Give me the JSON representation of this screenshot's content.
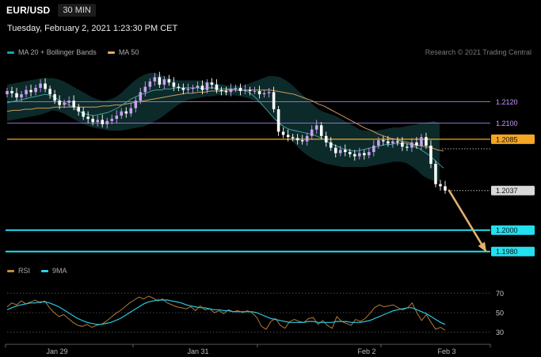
{
  "header": {
    "pair": "EUR/USD",
    "timeframe": "30 MIN",
    "datetime": "Tuesday, February 2, 2021 1:23:30 PM CET"
  },
  "legend_main": [
    {
      "label": "MA 20 + Bollinger Bands",
      "color": "#1aa2b0"
    },
    {
      "label": "MA 50",
      "color": "#e0a96a"
    }
  ],
  "legend_rsi": [
    {
      "label": "RSI",
      "color": "#c98a3a"
    },
    {
      "label": "9MA",
      "color": "#29d0e8"
    }
  ],
  "research": "Research © 2021 Trading Central",
  "colors": {
    "up": "#c8a2f0",
    "down": "#ffffff",
    "band": "#0e2c2c",
    "cyan": "#22e0f0",
    "orange": "#f5a623",
    "purple": "#9f7fe0",
    "arrow": "#e0b070"
  },
  "chart_data": [
    {
      "type": "candlestick",
      "x_labels": [
        "Jan 29",
        "Jan 31",
        "Feb 2",
        "Feb 3"
      ],
      "ylim": [
        1.1965,
        1.215
      ],
      "close": [
        1.213,
        1.2128,
        1.2124,
        1.2127,
        1.2131,
        1.2129,
        1.2133,
        1.2137,
        1.2132,
        1.2127,
        1.2121,
        1.2117,
        1.2119,
        1.2121,
        1.2115,
        1.2111,
        1.2106,
        1.2104,
        1.2101,
        1.2103,
        1.2099,
        1.2102,
        1.2104,
        1.2107,
        1.2111,
        1.2109,
        1.2114,
        1.2121,
        1.2129,
        1.2134,
        1.2139,
        1.2143,
        1.2136,
        1.2141,
        1.2138,
        1.2134,
        1.2133,
        1.2131,
        1.2132,
        1.2133,
        1.2135,
        1.2131,
        1.2138,
        1.2136,
        1.2131,
        1.213,
        1.2129,
        1.2132,
        1.2133,
        1.213,
        1.2131,
        1.213,
        1.213,
        1.2127,
        1.2128,
        1.2129,
        1.2113,
        1.2092,
        1.2089,
        1.2087,
        1.2086,
        1.2084,
        1.2083,
        1.2088,
        1.2094,
        1.2098,
        1.2088,
        1.2082,
        1.2077,
        1.2072,
        1.2075,
        1.2073,
        1.2071,
        1.2069,
        1.2072,
        1.207,
        1.2073,
        1.2079,
        1.2084,
        1.2083,
        1.2081,
        1.2083,
        1.2082,
        1.2078,
        1.2077,
        1.2082,
        1.2079,
        1.2087,
        1.2079,
        1.2062,
        1.2043,
        1.2041,
        1.2037
      ],
      "ma20": [
        1.2119,
        1.212,
        1.2121,
        1.2122,
        1.2123,
        1.2124,
        1.2125,
        1.2126,
        1.2127,
        1.2126,
        1.2124,
        1.2121,
        1.2119,
        1.2117,
        1.2114,
        1.2111,
        1.2109,
        1.2108,
        1.2107,
        1.2108,
        1.2109,
        1.211,
        1.2112,
        1.2114,
        1.2117,
        1.212,
        1.2123,
        1.2125,
        1.2127,
        1.2128,
        1.213,
        1.2131,
        1.2131,
        1.2132,
        1.2132,
        1.2133,
        1.2133,
        1.2133,
        1.2133,
        1.2133,
        1.2133,
        1.2132,
        1.2133,
        1.2133,
        1.2132,
        1.2132,
        1.2132,
        1.2132,
        1.2131,
        1.2131,
        1.213,
        1.2127,
        1.2123,
        1.2118,
        1.2113,
        1.2108,
        1.2103,
        1.2099,
        1.2096,
        1.2094,
        1.2093,
        1.2092,
        1.2091,
        1.209,
        1.2089,
        1.2087,
        1.2085,
        1.2082,
        1.208,
        1.2078,
        1.2076,
        1.2075,
        1.2074,
        1.2074,
        1.2075,
        1.2076,
        1.2077,
        1.2078,
        1.2079,
        1.208,
        1.208,
        1.2081,
        1.2081,
        1.2081,
        1.208,
        1.2078,
        1.2076,
        1.2073,
        1.207,
        1.2066,
        1.2062,
        1.2058
      ],
      "ma50": [
        1.2111,
        1.2112,
        1.2112,
        1.2113,
        1.2113,
        1.2114,
        1.2114,
        1.2114,
        1.2115,
        1.2115,
        1.2115,
        1.2115,
        1.2115,
        1.2115,
        1.2115,
        1.2115,
        1.2116,
        1.2116,
        1.2117,
        1.2117,
        1.2118,
        1.2119,
        1.212,
        1.2121,
        1.2122,
        1.2123,
        1.2124,
        1.2125,
        1.2126,
        1.2127,
        1.2128,
        1.2128,
        1.2129,
        1.2129,
        1.213,
        1.213,
        1.213,
        1.2131,
        1.2131,
        1.2131,
        1.2131,
        1.2131,
        1.2131,
        1.2131,
        1.2131,
        1.213,
        1.2129,
        1.2128,
        1.2127,
        1.2125,
        1.2123,
        1.2121,
        1.2118,
        1.2116,
        1.2113,
        1.211,
        1.2107,
        1.2104,
        1.2101,
        1.2098,
        1.2095,
        1.2093,
        1.209,
        1.2088,
        1.2086,
        1.2085,
        1.2083,
        1.2082,
        1.208,
        1.2079,
        1.2078,
        1.2077,
        1.2075,
        1.2074
      ],
      "bb_upper": [
        1.2136,
        1.2137,
        1.2138,
        1.2139,
        1.214,
        1.2141,
        1.2142,
        1.2142,
        1.2142,
        1.2141,
        1.2139,
        1.2136,
        1.2133,
        1.213,
        1.2127,
        1.2124,
        1.2122,
        1.2121,
        1.2122,
        1.2124,
        1.2128,
        1.2133,
        1.2138,
        1.2142,
        1.2145,
        1.2147,
        1.2147,
        1.2145,
        1.2143,
        1.2141,
        1.214,
        1.214,
        1.214,
        1.214,
        1.214,
        1.2139,
        1.2138,
        1.2137,
        1.2136,
        1.2135,
        1.2135,
        1.2135,
        1.2136,
        1.2138,
        1.214,
        1.2142,
        1.2144,
        1.2144,
        1.2143,
        1.214,
        1.2136,
        1.2131,
        1.2126,
        1.2121,
        1.2116,
        1.2112,
        1.211,
        1.2108,
        1.2106,
        1.2103,
        1.21,
        1.2097,
        1.2094,
        1.2093,
        1.2093,
        1.2093,
        1.2094,
        1.2095,
        1.2096,
        1.2096,
        1.2097,
        1.2098,
        1.2099,
        1.21,
        1.2101,
        1.2102,
        1.21
      ],
      "bb_lower": [
        1.2102,
        1.2103,
        1.2104,
        1.2105,
        1.2106,
        1.2107,
        1.2108,
        1.211,
        1.2112,
        1.2111,
        1.2109,
        1.2106,
        1.2103,
        1.21,
        1.2098,
        1.2096,
        1.2095,
        1.2094,
        1.2093,
        1.2093,
        1.2093,
        1.2094,
        1.2095,
        1.2096,
        1.2097,
        1.2099,
        1.2102,
        1.2105,
        1.2109,
        1.2113,
        1.2117,
        1.212,
        1.2122,
        1.2123,
        1.2124,
        1.2125,
        1.2125,
        1.2126,
        1.2126,
        1.2126,
        1.2126,
        1.2125,
        1.2124,
        1.2122,
        1.212,
        1.2116,
        1.2111,
        1.2105,
        1.2098,
        1.2091,
        1.2084,
        1.2078,
        1.2073,
        1.2069,
        1.2066,
        1.2064,
        1.2062,
        1.2061,
        1.206,
        1.2059,
        1.2059,
        1.2059,
        1.2059,
        1.2059,
        1.206,
        1.2061,
        1.2062,
        1.2063,
        1.2064,
        1.2064,
        1.2063,
        1.206,
        1.2056,
        1.2051,
        1.2048,
        1.2046,
        1.2046
      ],
      "levels": [
        {
          "value": 1.212,
          "label": "1.2120",
          "style": "purple"
        },
        {
          "value": 1.21,
          "label": "1.2100",
          "style": "purple"
        },
        {
          "value": 1.2085,
          "label": "1.2085",
          "style": "orange"
        },
        {
          "value": 1.2037,
          "label": "1.2037",
          "style": "current"
        },
        {
          "value": 1.2,
          "label": "1.2000",
          "style": "cyan"
        },
        {
          "value": 1.198,
          "label": "1.1980",
          "style": "cyan"
        }
      ],
      "arrow": {
        "from": 1.2037,
        "to": 1.198
      }
    },
    {
      "type": "line",
      "name": "RSI",
      "ylim": [
        20,
        80
      ],
      "y_ticks": [
        70,
        50,
        30
      ],
      "rsi": [
        56,
        60,
        58,
        62,
        59,
        61,
        63,
        60,
        62,
        55,
        50,
        46,
        48,
        44,
        40,
        37,
        36,
        38,
        35,
        37,
        38,
        41,
        45,
        49,
        52,
        56,
        60,
        63,
        66,
        64,
        67,
        65,
        62,
        64,
        60,
        58,
        56,
        55,
        54,
        56,
        52,
        57,
        53,
        54,
        50,
        52,
        49,
        53,
        51,
        52,
        50,
        52,
        50,
        45,
        36,
        33,
        41,
        44,
        37,
        34,
        41,
        43,
        41,
        40,
        44,
        45,
        38,
        42,
        37,
        34,
        46,
        41,
        39,
        37,
        43,
        41,
        44,
        49,
        55,
        58,
        56,
        57,
        58,
        55,
        53,
        55,
        60,
        50,
        42,
        48,
        40,
        33,
        35,
        32
      ],
      "ma9": [
        53,
        55,
        57,
        58,
        59,
        60,
        60,
        61,
        61,
        60,
        58,
        56,
        53,
        50,
        47,
        44,
        42,
        40,
        39,
        38,
        38,
        39,
        40,
        42,
        44,
        47,
        50,
        53,
        56,
        59,
        61,
        62,
        63,
        63,
        63,
        62,
        61,
        60,
        58,
        57,
        56,
        55,
        55,
        54,
        53,
        53,
        52,
        52,
        51,
        51,
        51,
        51,
        51,
        50,
        48,
        46,
        44,
        43,
        42,
        41,
        40,
        40,
        40,
        40,
        41,
        41,
        40,
        40,
        40,
        40,
        41,
        41,
        41,
        40,
        40,
        40,
        41,
        42,
        44,
        46,
        48,
        50,
        52,
        53,
        54,
        55,
        55,
        53,
        51,
        49,
        46,
        43,
        40,
        38
      ]
    }
  ]
}
